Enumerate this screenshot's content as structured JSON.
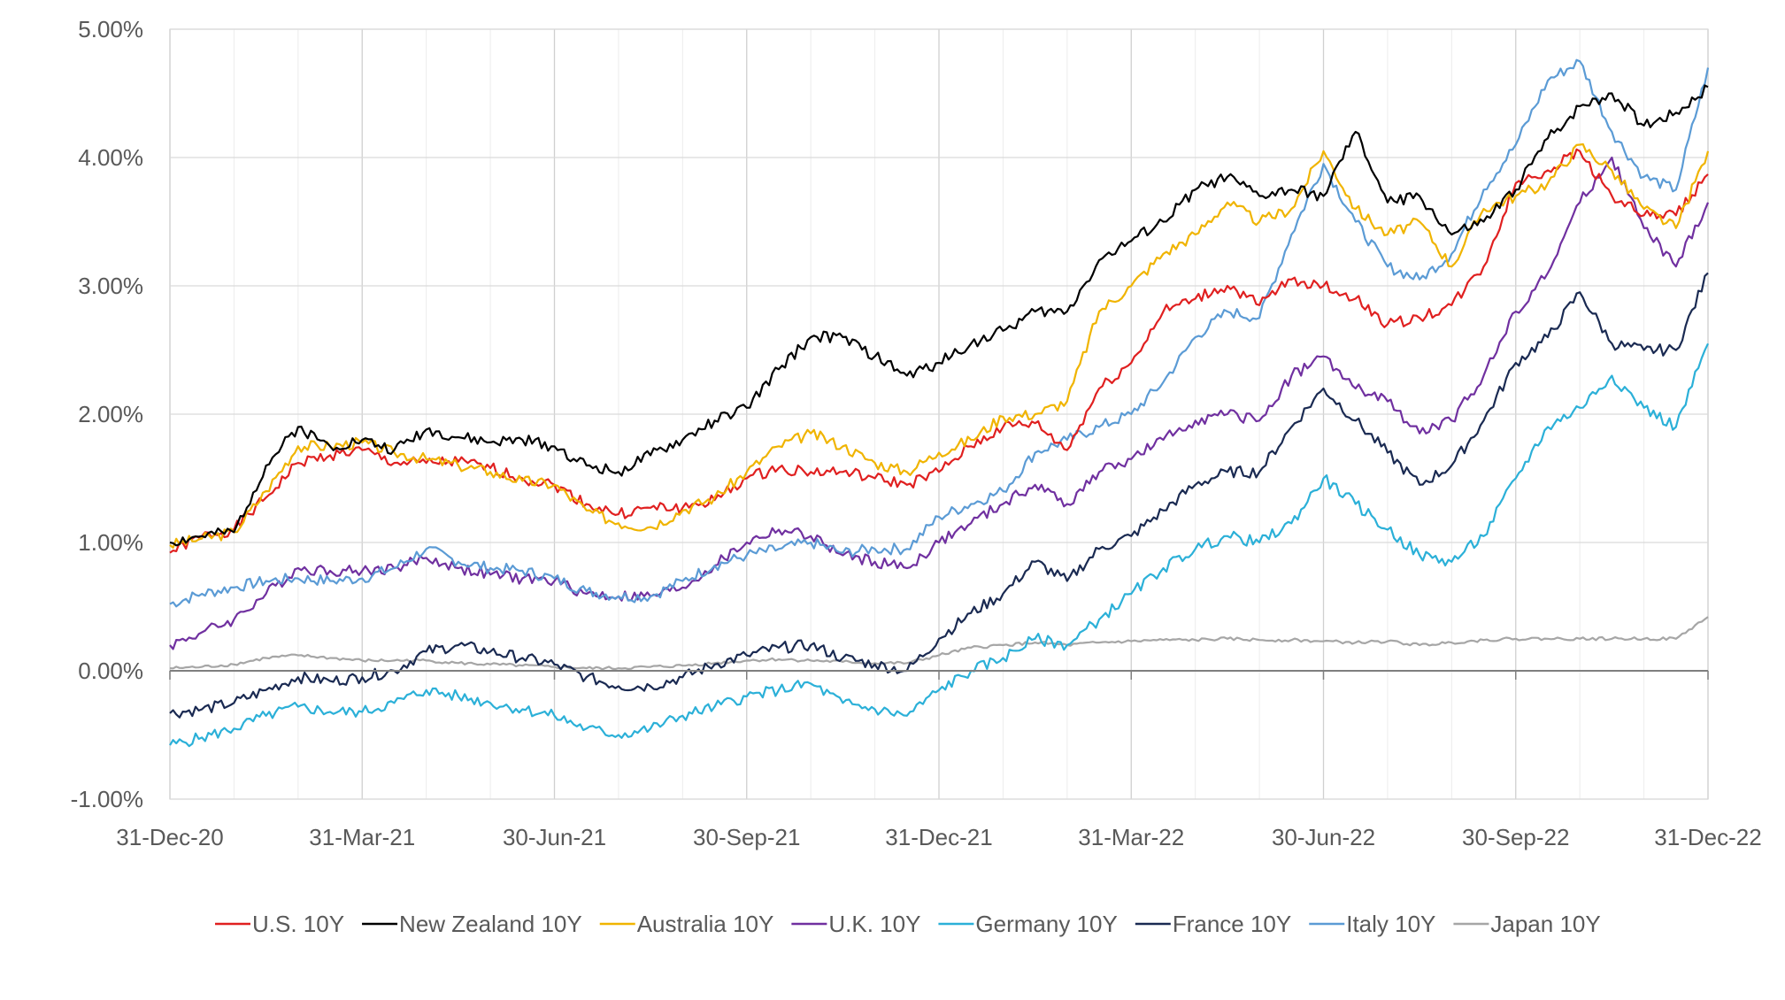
{
  "chart_data": {
    "type": "line",
    "title": "",
    "xlabel": "",
    "ylabel": "",
    "ylim": [
      -1.0,
      5.0
    ],
    "y_ticks": [
      -1.0,
      0.0,
      1.0,
      2.0,
      3.0,
      4.0,
      5.0
    ],
    "y_tick_labels": [
      "-1.00%",
      "0.00%",
      "1.00%",
      "2.00%",
      "3.00%",
      "4.00%",
      "5.00%"
    ],
    "x_ticks": [
      0,
      3,
      6,
      9,
      12,
      15,
      18,
      21,
      24
    ],
    "x_tick_labels": [
      "31-Dec-20",
      "31-Mar-21",
      "30-Jun-21",
      "30-Sep-21",
      "31-Dec-21",
      "31-Mar-22",
      "30-Jun-22",
      "30-Sep-22",
      "31-Dec-22"
    ],
    "x_units": "months since 31-Dec-20",
    "x": [
      0,
      0.5,
      1,
      1.5,
      2,
      2.5,
      3,
      3.5,
      4,
      4.5,
      5,
      5.5,
      6,
      6.5,
      7,
      7.5,
      8,
      8.5,
      9,
      9.5,
      10,
      10.5,
      11,
      11.5,
      12,
      12.5,
      13,
      13.5,
      14,
      14.5,
      15,
      15.5,
      16,
      16.5,
      17,
      17.5,
      18,
      18.5,
      19,
      19.5,
      20,
      20.5,
      21,
      21.5,
      22,
      22.5,
      23,
      23.5,
      24
    ],
    "legend_position": "bottom",
    "grid": true,
    "series": [
      {
        "name": "U.S. 10Y",
        "color": "#e02020",
        "values": [
          0.92,
          1.05,
          1.1,
          1.35,
          1.62,
          1.68,
          1.72,
          1.62,
          1.62,
          1.63,
          1.58,
          1.5,
          1.45,
          1.3,
          1.22,
          1.27,
          1.27,
          1.33,
          1.5,
          1.58,
          1.55,
          1.55,
          1.5,
          1.45,
          1.55,
          1.75,
          1.9,
          1.93,
          1.72,
          2.2,
          2.4,
          2.8,
          2.9,
          3.0,
          2.85,
          3.05,
          3.0,
          2.9,
          2.7,
          2.75,
          2.85,
          3.15,
          3.8,
          3.9,
          4.05,
          3.7,
          3.55,
          3.55,
          3.87
        ]
      },
      {
        "name": "New Zealand 10Y",
        "color": "#000000",
        "values": [
          1.0,
          1.05,
          1.08,
          1.6,
          1.9,
          1.75,
          1.8,
          1.72,
          1.88,
          1.82,
          1.78,
          1.8,
          1.75,
          1.6,
          1.55,
          1.68,
          1.8,
          1.95,
          2.05,
          2.35,
          2.6,
          2.6,
          2.45,
          2.3,
          2.4,
          2.55,
          2.65,
          2.8,
          2.8,
          3.2,
          3.35,
          3.5,
          3.75,
          3.85,
          3.7,
          3.75,
          3.7,
          4.2,
          3.65,
          3.7,
          3.4,
          3.5,
          3.75,
          4.15,
          4.4,
          4.5,
          4.25,
          4.35,
          4.55
        ]
      },
      {
        "name": "Australia 10Y",
        "color": "#f0b400",
        "values": [
          0.98,
          1.03,
          1.08,
          1.4,
          1.75,
          1.75,
          1.78,
          1.7,
          1.65,
          1.6,
          1.55,
          1.48,
          1.45,
          1.25,
          1.15,
          1.12,
          1.25,
          1.35,
          1.55,
          1.75,
          1.85,
          1.75,
          1.62,
          1.55,
          1.7,
          1.8,
          1.98,
          2.0,
          2.1,
          2.8,
          3.0,
          3.25,
          3.4,
          3.65,
          3.5,
          3.6,
          4.05,
          3.6,
          3.4,
          3.5,
          3.15,
          3.6,
          3.7,
          3.8,
          4.1,
          3.9,
          3.6,
          3.45,
          4.05
        ]
      },
      {
        "name": "U.K. 10Y",
        "color": "#7030a0",
        "values": [
          0.2,
          0.3,
          0.4,
          0.6,
          0.8,
          0.78,
          0.78,
          0.8,
          0.88,
          0.8,
          0.75,
          0.72,
          0.7,
          0.6,
          0.58,
          0.58,
          0.65,
          0.82,
          1.0,
          1.1,
          1.05,
          0.9,
          0.85,
          0.8,
          1.0,
          1.15,
          1.3,
          1.45,
          1.3,
          1.55,
          1.65,
          1.8,
          1.95,
          2.0,
          1.95,
          2.3,
          2.45,
          2.2,
          2.1,
          1.85,
          1.95,
          2.3,
          2.8,
          3.1,
          3.65,
          4.0,
          3.45,
          3.15,
          3.65
        ]
      },
      {
        "name": "Germany 10Y",
        "color": "#2bb0d8",
        "values": [
          -0.58,
          -0.52,
          -0.45,
          -0.35,
          -0.28,
          -0.32,
          -0.32,
          -0.25,
          -0.15,
          -0.2,
          -0.25,
          -0.3,
          -0.35,
          -0.45,
          -0.5,
          -0.45,
          -0.35,
          -0.28,
          -0.2,
          -0.15,
          -0.1,
          -0.25,
          -0.3,
          -0.35,
          -0.15,
          0.0,
          0.1,
          0.25,
          0.2,
          0.4,
          0.6,
          0.8,
          0.95,
          1.05,
          1.0,
          1.15,
          1.5,
          1.3,
          1.1,
          0.9,
          0.85,
          1.05,
          1.5,
          1.9,
          2.05,
          2.3,
          2.05,
          1.9,
          2.55
        ]
      },
      {
        "name": "France 10Y",
        "color": "#1a2a52",
        "values": [
          -0.33,
          -0.3,
          -0.25,
          -0.15,
          -0.05,
          -0.08,
          -0.05,
          0.0,
          0.15,
          0.2,
          0.15,
          0.1,
          0.05,
          -0.05,
          -0.12,
          -0.12,
          -0.05,
          0.05,
          0.12,
          0.18,
          0.2,
          0.1,
          0.05,
          0.0,
          0.25,
          0.45,
          0.6,
          0.85,
          0.7,
          0.95,
          1.05,
          1.25,
          1.45,
          1.55,
          1.55,
          1.9,
          2.2,
          1.95,
          1.7,
          1.45,
          1.6,
          1.95,
          2.4,
          2.6,
          2.95,
          2.55,
          2.5,
          2.5,
          3.1
        ]
      },
      {
        "name": "Italy 10Y",
        "color": "#5b9bd5",
        "values": [
          0.52,
          0.6,
          0.65,
          0.7,
          0.72,
          0.7,
          0.72,
          0.8,
          0.95,
          0.85,
          0.8,
          0.78,
          0.72,
          0.62,
          0.58,
          0.58,
          0.7,
          0.82,
          0.9,
          0.95,
          1.0,
          0.92,
          0.95,
          0.95,
          1.2,
          1.3,
          1.4,
          1.7,
          1.8,
          1.9,
          2.0,
          2.25,
          2.6,
          2.8,
          2.75,
          3.4,
          3.95,
          3.5,
          3.15,
          3.05,
          3.25,
          3.75,
          4.1,
          4.6,
          4.75,
          4.2,
          3.85,
          3.75,
          4.7
        ]
      },
      {
        "name": "Japan 10Y",
        "color": "#a6a6a6",
        "values": [
          0.02,
          0.03,
          0.05,
          0.1,
          0.12,
          0.1,
          0.08,
          0.08,
          0.08,
          0.06,
          0.05,
          0.04,
          0.03,
          0.02,
          0.02,
          0.03,
          0.04,
          0.06,
          0.08,
          0.09,
          0.08,
          0.07,
          0.06,
          0.06,
          0.12,
          0.18,
          0.2,
          0.22,
          0.2,
          0.22,
          0.23,
          0.24,
          0.24,
          0.25,
          0.24,
          0.24,
          0.23,
          0.22,
          0.23,
          0.2,
          0.22,
          0.24,
          0.25,
          0.25,
          0.25,
          0.25,
          0.25,
          0.25,
          0.42
        ]
      }
    ]
  }
}
